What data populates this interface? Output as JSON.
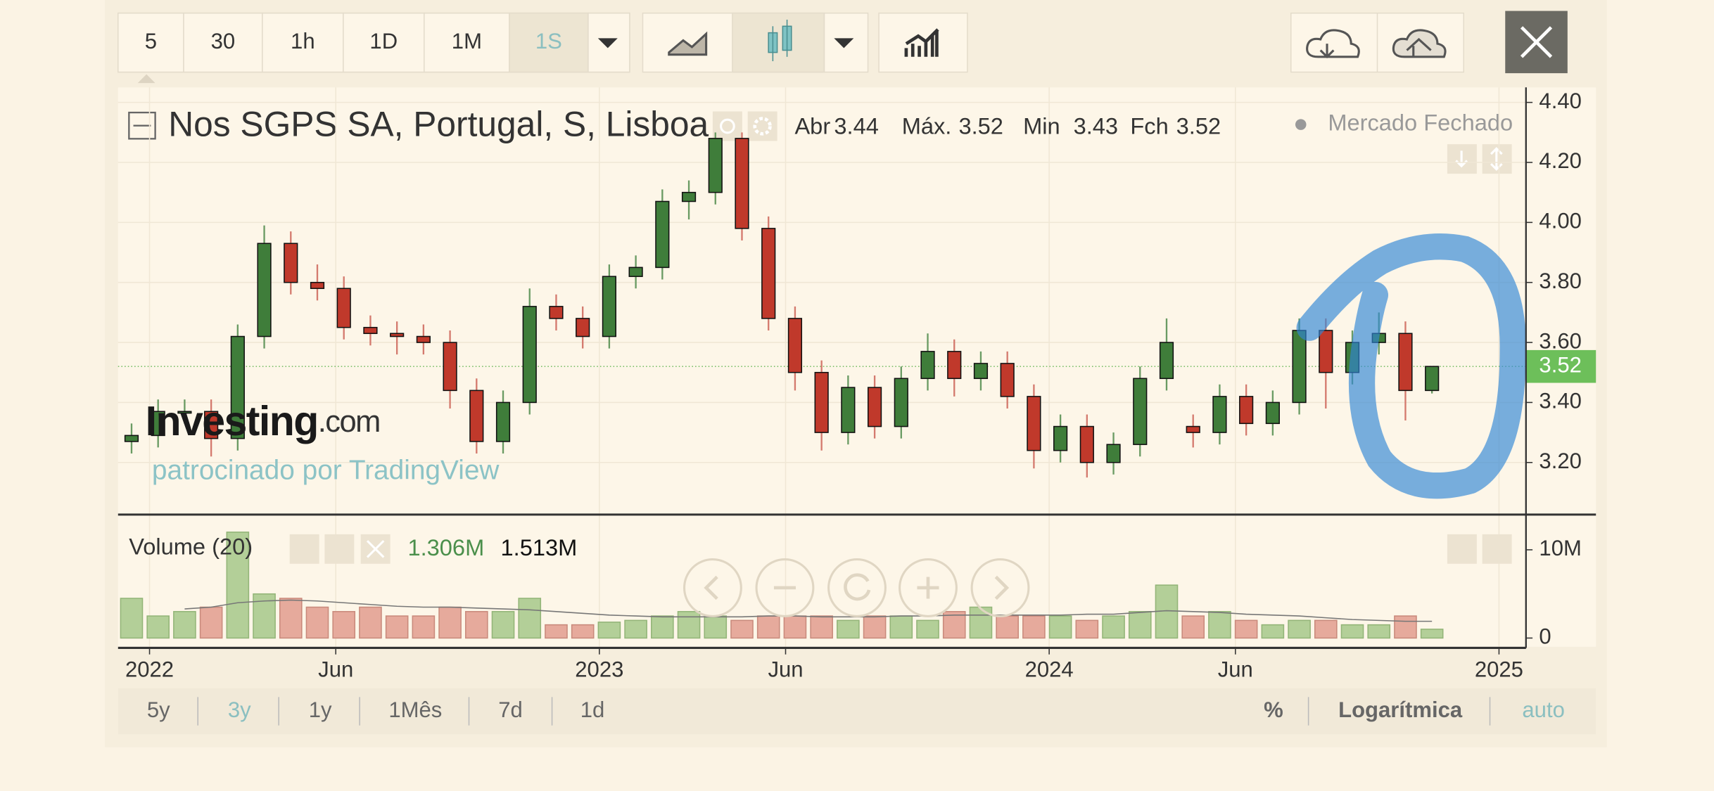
{
  "toolbar": {
    "intervals": [
      "5",
      "30",
      "1h",
      "1D",
      "1M",
      "1S"
    ]
  },
  "chart_data": {
    "type": "candlestick",
    "title": "Nos SGPS SA, Portugal, S, Lisboa",
    "ohlc_header": [
      {
        "label": "Abr",
        "value": 3.44
      },
      {
        "label": "Máx.",
        "value": 3.52
      },
      {
        "label": "Min",
        "value": 3.43
      },
      {
        "label": "Fch",
        "value": 3.52
      }
    ],
    "status": "Mercado Fechado",
    "last_price": 3.52,
    "x": [
      2021.96,
      2022.019,
      2022.078,
      2022.137,
      2022.196,
      2022.255,
      2022.314,
      2022.373,
      2022.432,
      2022.491,
      2022.55,
      2022.609,
      2022.668,
      2022.727,
      2022.786,
      2022.845,
      2022.904,
      2022.963,
      2023.022,
      2023.081,
      2023.14,
      2023.199,
      2023.258,
      2023.317,
      2023.376,
      2023.435,
      2023.494,
      2023.553,
      2023.612,
      2023.671,
      2023.73,
      2023.789,
      2023.848,
      2023.907,
      2023.966,
      2024.025,
      2024.084,
      2024.143,
      2024.202,
      2024.261,
      2024.32,
      2024.379,
      2024.438,
      2024.497,
      2024.556,
      2024.615,
      2024.674,
      2024.733,
      2024.792,
      2024.851
    ],
    "open": [
      3.27,
      3.29,
      3.37,
      3.37,
      3.28,
      3.62,
      3.93,
      3.8,
      3.78,
      3.65,
      3.63,
      3.62,
      3.6,
      3.44,
      3.27,
      3.4,
      3.72,
      3.68,
      3.62,
      3.82,
      3.85,
      4.07,
      4.1,
      4.28,
      3.98,
      3.68,
      3.5,
      3.3,
      3.45,
      3.32,
      3.48,
      3.57,
      3.48,
      3.53,
      3.42,
      3.24,
      3.32,
      3.2,
      3.26,
      3.48,
      3.32,
      3.3,
      3.42,
      3.33,
      3.4,
      3.64,
      3.5,
      3.6,
      3.63,
      3.44
    ],
    "high": [
      3.33,
      3.41,
      3.41,
      3.41,
      3.66,
      3.99,
      3.97,
      3.86,
      3.82,
      3.69,
      3.67,
      3.66,
      3.64,
      3.48,
      3.44,
      3.78,
      3.76,
      3.72,
      3.86,
      3.89,
      4.11,
      4.14,
      4.3,
      4.3,
      4.02,
      3.72,
      3.54,
      3.49,
      3.49,
      3.52,
      3.63,
      3.61,
      3.57,
      3.57,
      3.46,
      3.36,
      3.36,
      3.3,
      3.52,
      3.68,
      3.36,
      3.46,
      3.46,
      3.44,
      3.68,
      3.68,
      3.64,
      3.7,
      3.67,
      3.52
    ],
    "low": [
      3.23,
      3.25,
      3.33,
      3.22,
      3.24,
      3.58,
      3.76,
      3.74,
      3.61,
      3.59,
      3.56,
      3.56,
      3.38,
      3.23,
      3.23,
      3.36,
      3.64,
      3.58,
      3.58,
      3.78,
      3.81,
      4.01,
      4.06,
      3.94,
      3.64,
      3.44,
      3.24,
      3.26,
      3.28,
      3.28,
      3.44,
      3.42,
      3.44,
      3.38,
      3.18,
      3.2,
      3.15,
      3.16,
      3.22,
      3.44,
      3.25,
      3.26,
      3.29,
      3.29,
      3.36,
      3.38,
      3.46,
      3.56,
      3.34,
      3.43
    ],
    "close": [
      3.29,
      3.37,
      3.37,
      3.28,
      3.62,
      3.93,
      3.8,
      3.78,
      3.65,
      3.63,
      3.62,
      3.6,
      3.44,
      3.27,
      3.4,
      3.72,
      3.68,
      3.62,
      3.82,
      3.85,
      4.07,
      4.1,
      4.28,
      3.98,
      3.68,
      3.5,
      3.3,
      3.45,
      3.32,
      3.48,
      3.57,
      3.48,
      3.53,
      3.42,
      3.24,
      3.32,
      3.2,
      3.26,
      3.48,
      3.6,
      3.3,
      3.42,
      3.33,
      3.4,
      3.64,
      3.5,
      3.6,
      3.63,
      3.44,
      3.52
    ],
    "up_color": "#3f7d3a",
    "down_color": "#c0392b",
    "xlim": [
      2021.93,
      2025.06
    ],
    "xticks": [
      2022,
      {
        "value": 2022.414,
        "label": "Jun"
      },
      2023,
      {
        "value": 2023.414,
        "label": "Jun"
      },
      2024,
      {
        "value": 2024.414,
        "label": "Jun"
      },
      2025
    ],
    "ylim": [
      3.03,
      4.45
    ],
    "yticks": [
      {
        "value": 3.2,
        "label": "3.20"
      },
      {
        "value": 3.4,
        "label": "3.40"
      },
      {
        "value": 3.6,
        "label": "3.60"
      },
      {
        "value": 3.8,
        "label": "3.80"
      },
      {
        "value": 4.0,
        "label": "4.00"
      },
      {
        "value": 4.2,
        "label": "4.20"
      },
      {
        "value": 4.4,
        "label": "4.40"
      }
    ],
    "volume": {
      "title": "Volume (20)",
      "readout": [
        "1.306M",
        "1.513M"
      ],
      "values": [
        4500000,
        2500000,
        3000000,
        3500000,
        12000000,
        5000000,
        4500000,
        3500000,
        3000000,
        3500000,
        2500000,
        2500000,
        3500000,
        3000000,
        3000000,
        4500000,
        1500000,
        1500000,
        1800000,
        2000000,
        2500000,
        3000000,
        2500000,
        2000000,
        2500000,
        2500000,
        2500000,
        2000000,
        2500000,
        2500000,
        2000000,
        3000000,
        3500000,
        2500000,
        2500000,
        2500000,
        2000000,
        2500000,
        3000000,
        6000000,
        2500000,
        3000000,
        2000000,
        1500000,
        2000000,
        2000000,
        1500000,
        1500000,
        2500000,
        1000000
      ],
      "ma": [
        null,
        null,
        3300000,
        3500000,
        4000000,
        4200000,
        4300000,
        4200000,
        4000000,
        3800000,
        3600000,
        3500000,
        3500000,
        3400000,
        3300000,
        3200000,
        3000000,
        2800000,
        2600000,
        2500000,
        2400000,
        2400000,
        2400000,
        2400000,
        2500000,
        2500000,
        2400000,
        2400000,
        2400000,
        2500000,
        2500000,
        2600000,
        2600000,
        2600000,
        2600000,
        2600000,
        2700000,
        2700000,
        2900000,
        3100000,
        3000000,
        2900000,
        2700000,
        2600000,
        2500000,
        2300000,
        2100000,
        2000000,
        1900000,
        1900000
      ],
      "ylim": [
        0,
        13000000
      ],
      "yticks": [
        0,
        {
          "value": 10000000,
          "label": "10M"
        }
      ]
    },
    "watermark": {
      "brand": "Investing",
      "suffix": ".com",
      "sponsor": "patrocinado por TradingView"
    }
  },
  "range_buttons": [
    "5y",
    "3y",
    "1y",
    "1Mês",
    "7d",
    "1d"
  ],
  "scale_options": [
    "%",
    "Logarítmica",
    "auto"
  ]
}
